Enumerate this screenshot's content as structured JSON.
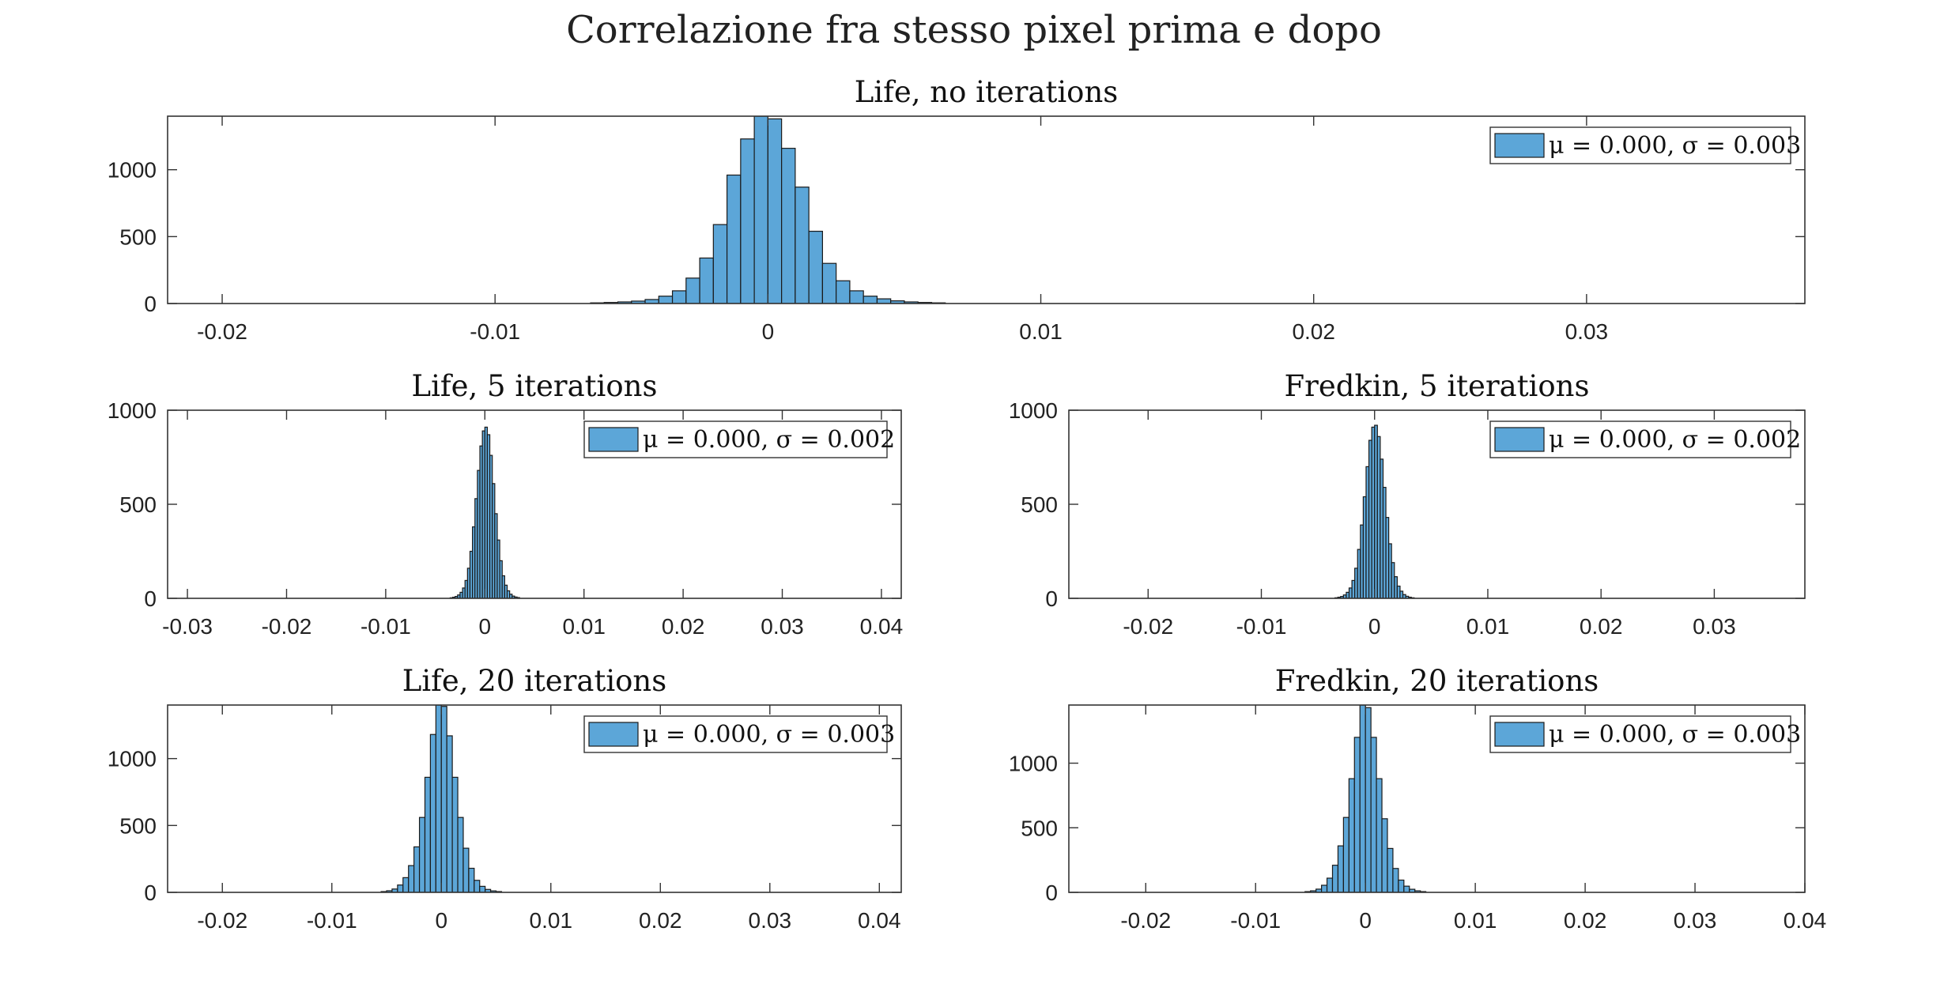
{
  "figure_title": "Correlazione fra stesso pixel prima e dopo",
  "bar_color": "#5ca6d8",
  "chart_data": [
    {
      "type": "bar",
      "title": "Life, no iterations",
      "legend": "μ = 0.000, σ = 0.003",
      "legend_position": "top-right",
      "xlim": [
        -0.022,
        0.038
      ],
      "ylim": [
        0,
        1400
      ],
      "xticks": [
        -0.02,
        -0.01,
        0,
        0.01,
        0.02,
        0.03
      ],
      "xtick_labels": [
        "-0.02",
        "-0.01",
        "0",
        "0.01",
        "0.02",
        "0.03"
      ],
      "yticks": [
        0,
        500,
        1000
      ],
      "ytick_labels": [
        "0",
        "500",
        "1000"
      ],
      "bin_width": 0.0005,
      "bin_start": -0.0065,
      "counts": [
        5,
        8,
        12,
        18,
        30,
        55,
        95,
        190,
        340,
        590,
        960,
        1230,
        1400,
        1380,
        1160,
        870,
        540,
        300,
        170,
        95,
        55,
        35,
        20,
        12,
        8,
        5
      ]
    },
    {
      "type": "bar",
      "title": "Life, 5 iterations",
      "legend": "μ = 0.000, σ = 0.002",
      "legend_position": "top-right",
      "xlim": [
        -0.032,
        0.042
      ],
      "ylim": [
        0,
        1000
      ],
      "xticks": [
        -0.03,
        -0.02,
        -0.01,
        0,
        0.01,
        0.02,
        0.03,
        0.04
      ],
      "xtick_labels": [
        "-0.03",
        "-0.02",
        "-0.01",
        "0",
        "0.01",
        "0.02",
        "0.03",
        "0.04"
      ],
      "yticks": [
        0,
        500,
        1000
      ],
      "ytick_labels": [
        "0",
        "500",
        "1000"
      ],
      "bin_width": 0.00025,
      "bin_start": -0.0035,
      "counts": [
        3,
        6,
        10,
        18,
        32,
        55,
        95,
        160,
        250,
        380,
        530,
        680,
        810,
        890,
        910,
        870,
        760,
        610,
        450,
        310,
        200,
        120,
        70,
        40,
        22,
        12,
        7,
        4
      ]
    },
    {
      "type": "bar",
      "title": "Fredkin, 5 iterations",
      "legend": "μ = 0.000, σ = 0.002",
      "legend_position": "top-right",
      "xlim": [
        -0.027,
        0.038
      ],
      "ylim": [
        0,
        1000
      ],
      "xticks": [
        -0.02,
        -0.01,
        0,
        0.01,
        0.02,
        0.03
      ],
      "xtick_labels": [
        "-0.02",
        "-0.01",
        "0",
        "0.01",
        "0.02",
        "0.03"
      ],
      "yticks": [
        0,
        500,
        1000
      ],
      "ytick_labels": [
        "0",
        "500",
        "1000"
      ],
      "bin_width": 0.00025,
      "bin_start": -0.0035,
      "counts": [
        3,
        6,
        10,
        18,
        32,
        55,
        95,
        160,
        260,
        390,
        540,
        700,
        840,
        910,
        920,
        860,
        740,
        590,
        430,
        290,
        190,
        115,
        65,
        38,
        20,
        11,
        6,
        3
      ]
    },
    {
      "type": "bar",
      "title": "Life, 20 iterations",
      "legend": "μ = 0.000, σ = 0.003",
      "legend_position": "top-right",
      "xlim": [
        -0.025,
        0.042
      ],
      "ylim": [
        0,
        1400
      ],
      "xticks": [
        -0.02,
        -0.01,
        0,
        0.01,
        0.02,
        0.03,
        0.04
      ],
      "xtick_labels": [
        "-0.02",
        "-0.01",
        "0",
        "0.01",
        "0.02",
        "0.03",
        "0.04"
      ],
      "yticks": [
        0,
        500,
        1000
      ],
      "ytick_labels": [
        "0",
        "500",
        "1000"
      ],
      "bin_width": 0.0005,
      "bin_start": -0.0055,
      "counts": [
        6,
        12,
        25,
        55,
        110,
        200,
        340,
        560,
        860,
        1180,
        1400,
        1390,
        1170,
        860,
        560,
        330,
        180,
        90,
        45,
        22,
        11,
        6
      ]
    },
    {
      "type": "bar",
      "title": "Fredkin, 20 iterations",
      "legend": "μ = 0.000, σ = 0.003",
      "legend_position": "top-right",
      "xlim": [
        -0.027,
        0.04
      ],
      "ylim": [
        0,
        1450
      ],
      "xticks": [
        -0.02,
        -0.01,
        0,
        0.01,
        0.02,
        0.03,
        0.04
      ],
      "xtick_labels": [
        "-0.02",
        "-0.01",
        "0",
        "0.01",
        "0.02",
        "0.03",
        "0.04"
      ],
      "yticks": [
        0,
        500,
        1000
      ],
      "ytick_labels": [
        "0",
        "500",
        "1000"
      ],
      "bin_width": 0.0005,
      "bin_start": -0.0055,
      "counts": [
        6,
        12,
        25,
        55,
        110,
        210,
        360,
        580,
        880,
        1200,
        1450,
        1430,
        1200,
        880,
        570,
        340,
        185,
        95,
        48,
        24,
        12,
        6
      ]
    }
  ]
}
